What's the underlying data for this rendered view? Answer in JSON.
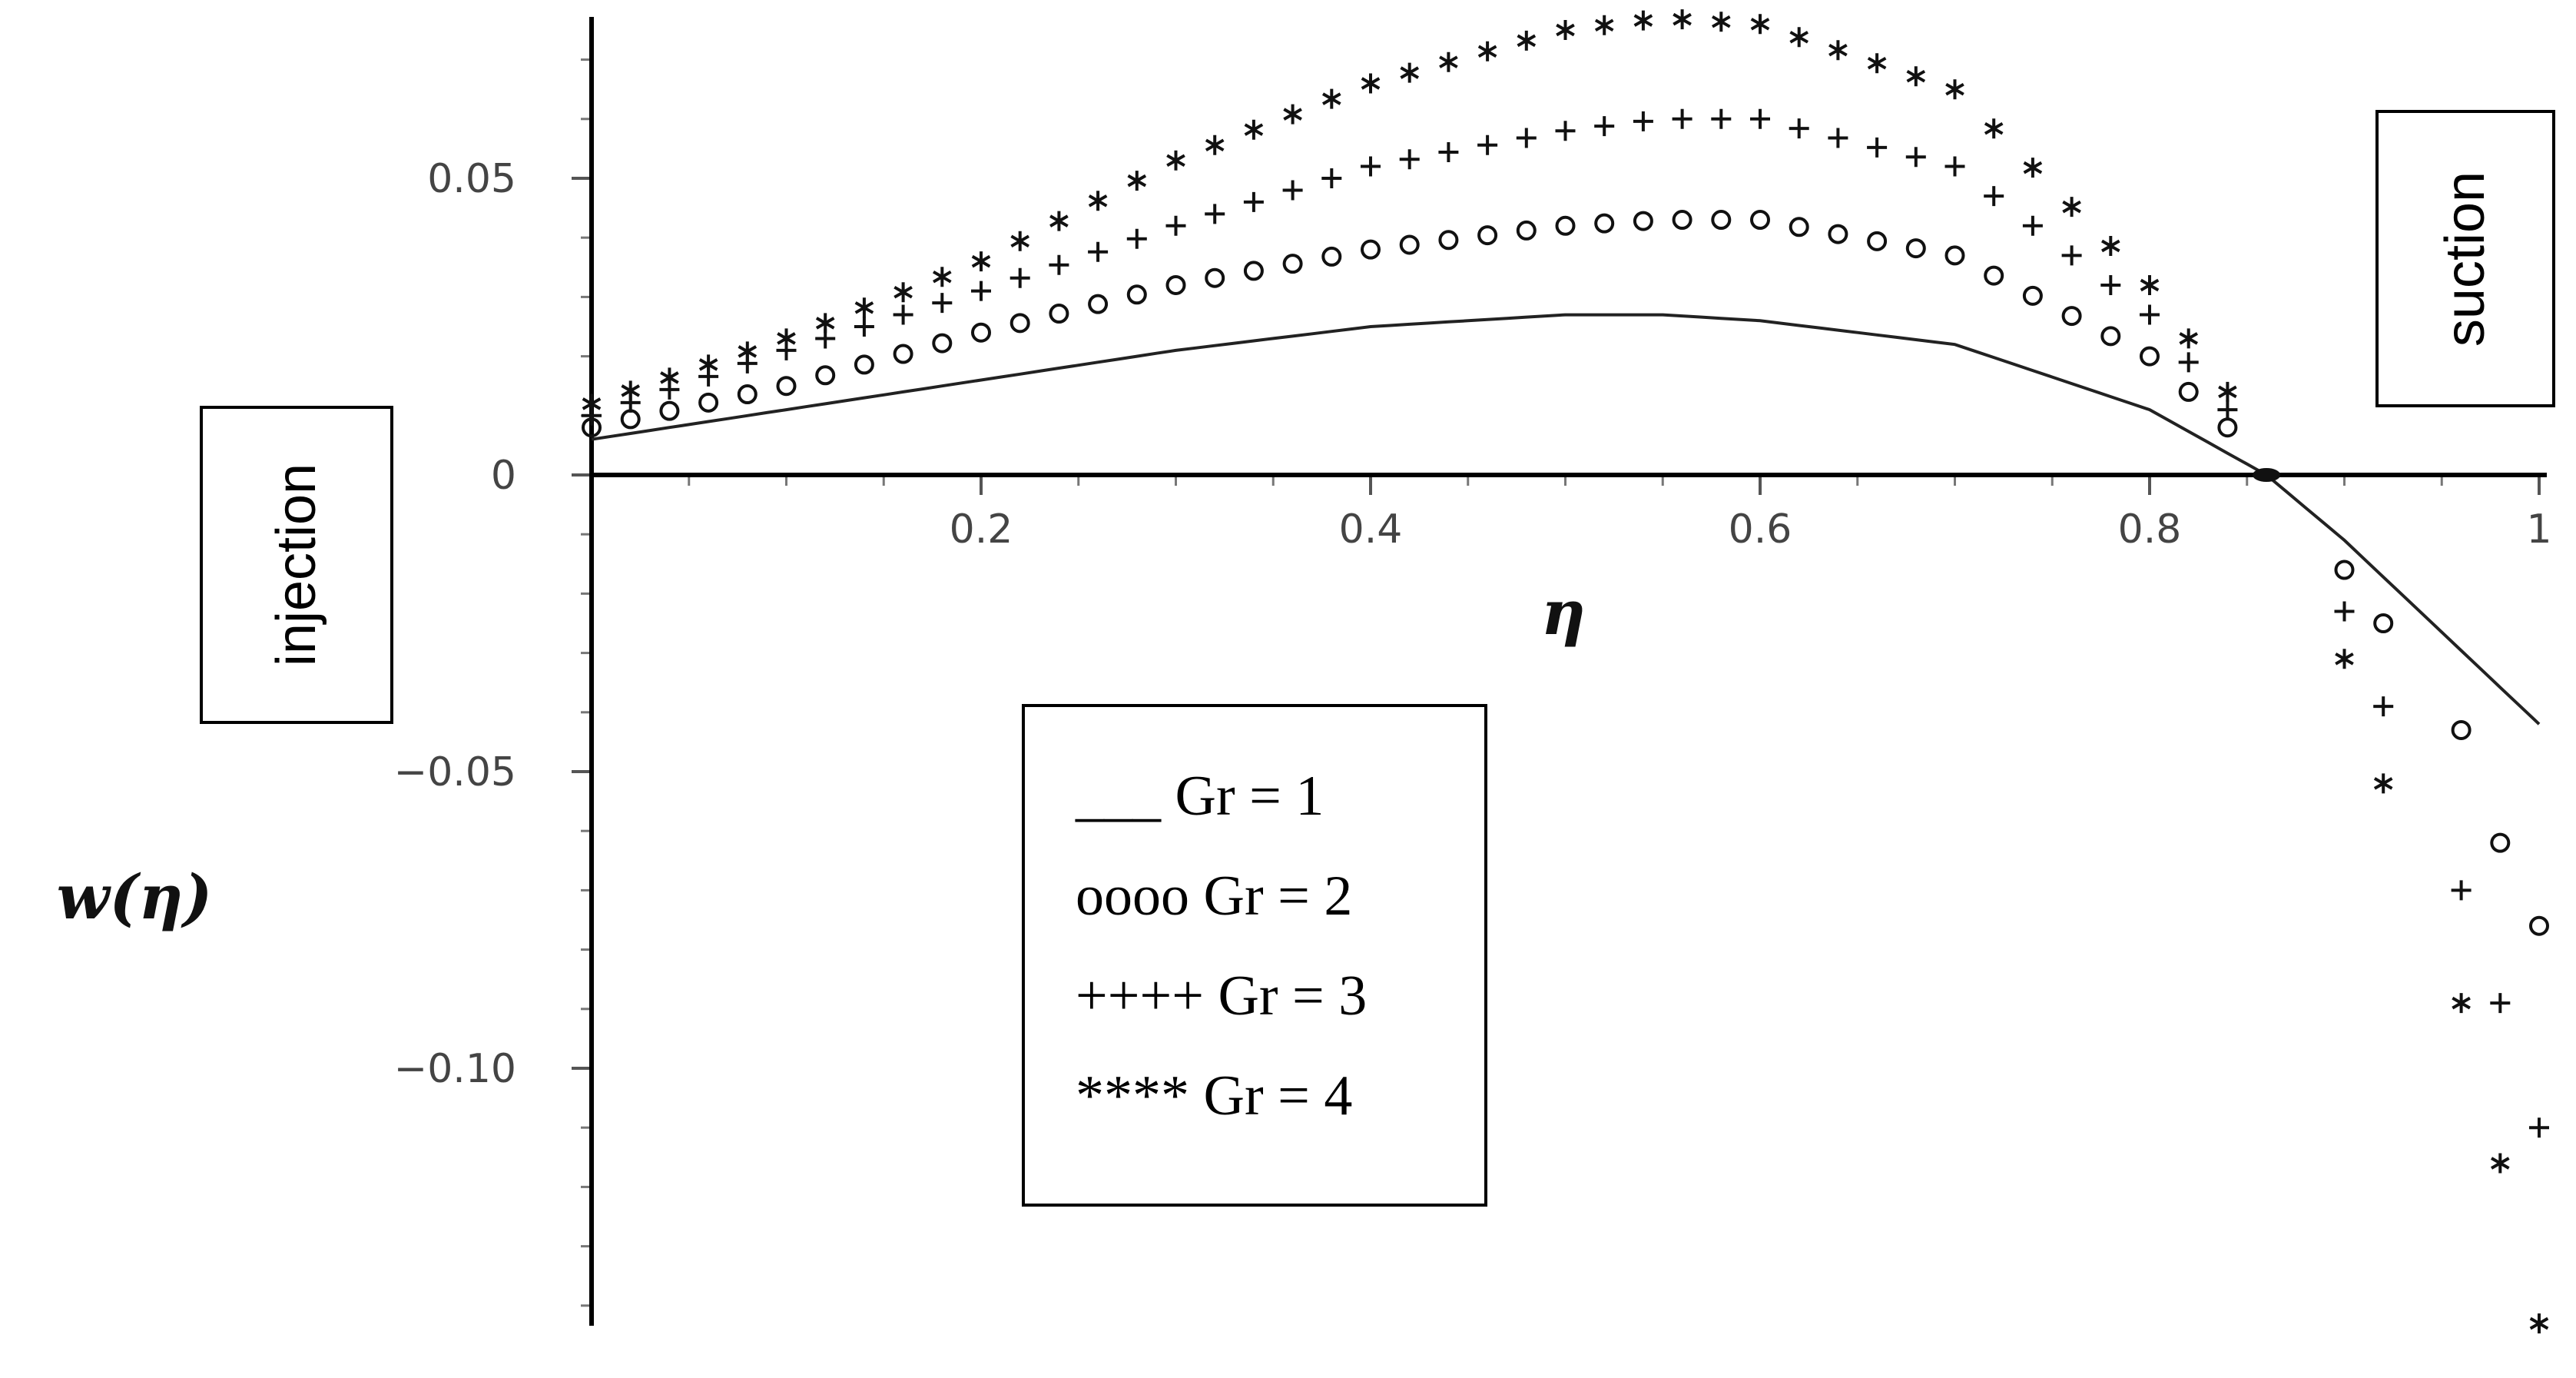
{
  "chart_data": {
    "type": "line",
    "xlabel": "η",
    "ylabel": "w(η)",
    "xlim": [
      0,
      1
    ],
    "ylim": [
      -0.14,
      0.078
    ],
    "x_ticks": [
      {
        "value": 0.2,
        "label": "0.2"
      },
      {
        "value": 0.4,
        "label": "0.4"
      },
      {
        "value": 0.6,
        "label": "0.6"
      },
      {
        "value": 0.8,
        "label": "0.8"
      },
      {
        "value": 1.0,
        "label": "1"
      }
    ],
    "y_ticks": [
      {
        "value": 0.05,
        "label": "0.05"
      },
      {
        "value": 0,
        "label": "0"
      },
      {
        "value": -0.05,
        "label": "−0.05"
      },
      {
        "value": -0.1,
        "label": "−0.10"
      }
    ],
    "annotations": [
      {
        "text": "injection",
        "side": "left"
      },
      {
        "text": "suction",
        "side": "right"
      }
    ],
    "legend": [
      {
        "symbol": "___",
        "label": "Gr = 1"
      },
      {
        "symbol": "oooo",
        "label": "Gr = 2"
      },
      {
        "symbol": "++++",
        "label": "Gr = 3"
      },
      {
        "symbol": "****",
        "label": "Gr = 4"
      }
    ],
    "series": [
      {
        "marker": "line",
        "x": [
          0,
          0.1,
          0.2,
          0.3,
          0.4,
          0.5,
          0.55,
          0.6,
          0.7,
          0.8,
          0.86,
          0.9,
          1.0
        ],
        "y": [
          0.006,
          0.011,
          0.016,
          0.021,
          0.025,
          0.027,
          0.027,
          0.026,
          0.022,
          0.011,
          0,
          -0.011,
          -0.042
        ]
      },
      {
        "marker": "o",
        "x": [
          0,
          0.1,
          0.2,
          0.3,
          0.4,
          0.5,
          0.55,
          0.6,
          0.7,
          0.8,
          0.84,
          0.86,
          0.9,
          0.92,
          0.96,
          0.98,
          1.0
        ],
        "y": [
          0.008,
          0.015,
          0.024,
          0.032,
          0.038,
          0.042,
          0.043,
          0.043,
          0.037,
          0.02,
          0.008,
          0,
          -0.016,
          -0.025,
          -0.043,
          -0.062,
          -0.076
        ]
      },
      {
        "marker": "+",
        "x": [
          0,
          0.1,
          0.2,
          0.3,
          0.4,
          0.5,
          0.55,
          0.6,
          0.7,
          0.8,
          0.84,
          0.86,
          0.9,
          0.92,
          0.96,
          0.98,
          1.0
        ],
        "y": [
          0.01,
          0.021,
          0.031,
          0.042,
          0.052,
          0.058,
          0.06,
          0.06,
          0.052,
          0.027,
          0.011,
          0,
          -0.023,
          -0.039,
          -0.07,
          -0.089,
          -0.11
        ]
      },
      {
        "marker": "*",
        "x": [
          0,
          0.1,
          0.2,
          0.3,
          0.4,
          0.5,
          0.55,
          0.6,
          0.7,
          0.8,
          0.84,
          0.86,
          0.9,
          0.92,
          0.96,
          0.98,
          1.0
        ],
        "y": [
          0.012,
          0.023,
          0.036,
          0.053,
          0.066,
          0.075,
          0.077,
          0.076,
          0.065,
          0.032,
          0.014,
          0,
          -0.031,
          -0.052,
          -0.089,
          -0.116,
          -0.143
        ]
      }
    ]
  }
}
